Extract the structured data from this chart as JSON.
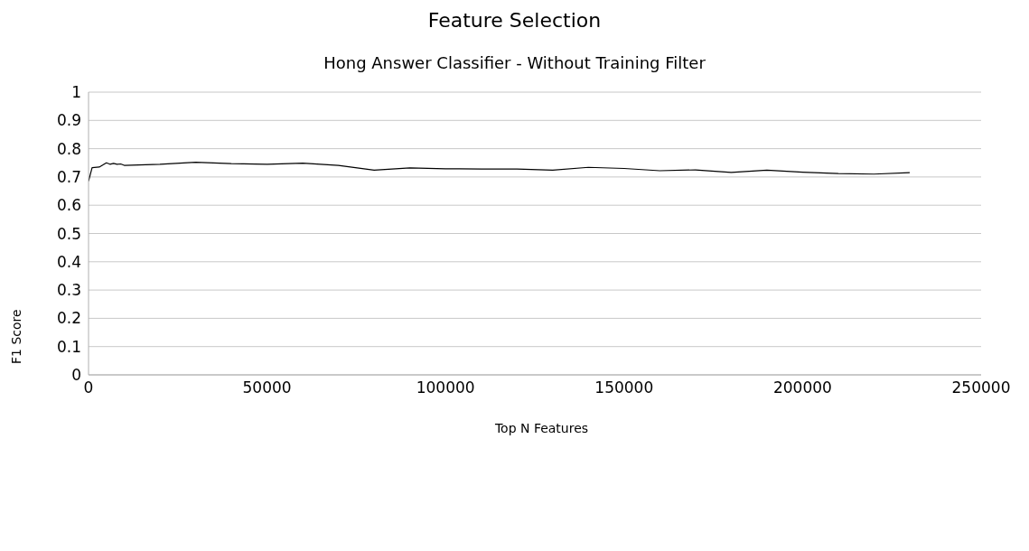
{
  "chart_data": {
    "type": "line",
    "title": "Feature Selection",
    "subtitle": "Hong Answer Classifier - Without Training Filter",
    "xlabel": "Top N Features",
    "ylabel": "F1 Score",
    "x": [
      0,
      1000,
      3000,
      5000,
      6000,
      7000,
      8000,
      9000,
      10000,
      20000,
      30000,
      40000,
      50000,
      60000,
      70000,
      80000,
      90000,
      100000,
      110000,
      120000,
      130000,
      140000,
      150000,
      160000,
      170000,
      180000,
      190000,
      200000,
      210000,
      220000,
      230000
    ],
    "series": [
      {
        "color": "#000000",
        "values": [
          0.685,
          0.733,
          0.735,
          0.75,
          0.745,
          0.748,
          0.745,
          0.746,
          0.741,
          0.745,
          0.752,
          0.747,
          0.745,
          0.749,
          0.741,
          0.724,
          0.732,
          0.729,
          0.728,
          0.728,
          0.724,
          0.734,
          0.73,
          0.722,
          0.725,
          0.716,
          0.724,
          0.717,
          0.712,
          0.71,
          0.715
        ]
      }
    ],
    "xlim": [
      0,
      250000
    ],
    "xticks": [
      0,
      50000,
      100000,
      150000,
      200000,
      250000
    ],
    "ylim": [
      0,
      1
    ],
    "yticks": [
      0,
      0.1,
      0.2,
      0.3,
      0.4,
      0.5,
      0.6,
      0.7,
      0.8,
      0.9,
      1
    ],
    "grid": "y",
    "legend": false,
    "marker": "none",
    "line_style": "solid"
  }
}
